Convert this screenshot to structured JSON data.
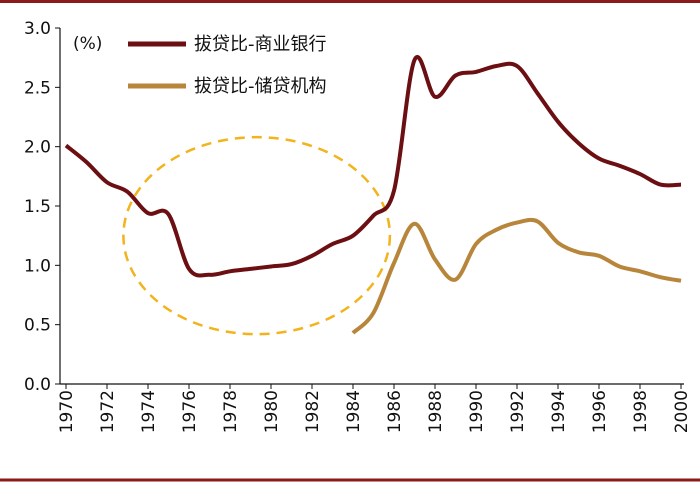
{
  "chart_data": {
    "type": "line",
    "unit_label": "(%)",
    "ylim": [
      0,
      3.0
    ],
    "y_ticks": [
      "0.0",
      "0.5",
      "1.0",
      "1.5",
      "2.0",
      "2.5",
      "3.0"
    ],
    "xlim": [
      1970,
      2000
    ],
    "x_ticks": [
      "1970",
      "1972",
      "1974",
      "1976",
      "1978",
      "1980",
      "1982",
      "1984",
      "1986",
      "1988",
      "1990",
      "1992",
      "1994",
      "1996",
      "1998",
      "2000"
    ],
    "grid": false,
    "legend_position": "top",
    "series": [
      {
        "name": "拔贷比-商业银行",
        "color": "#6b0f12",
        "x": [
          1970,
          1971,
          1972,
          1973,
          1974,
          1975,
          1976,
          1977,
          1978,
          1979,
          1980,
          1981,
          1982,
          1983,
          1984,
          1985,
          1986,
          1987,
          1988,
          1989,
          1990,
          1991,
          1992,
          1993,
          1994,
          1995,
          1996,
          1997,
          1998,
          1999,
          2000
        ],
        "values": [
          2.01,
          1.87,
          1.7,
          1.62,
          1.44,
          1.43,
          0.97,
          0.92,
          0.95,
          0.97,
          0.99,
          1.01,
          1.08,
          1.18,
          1.25,
          1.42,
          1.63,
          2.73,
          2.42,
          2.6,
          2.63,
          2.68,
          2.68,
          2.45,
          2.21,
          2.03,
          1.9,
          1.84,
          1.77,
          1.68,
          1.68
        ]
      },
      {
        "name": "拔贷比-储贷机构",
        "color": "#b8863b",
        "x": [
          1984,
          1985,
          1986,
          1987,
          1988,
          1989,
          1990,
          1991,
          1992,
          1993,
          1994,
          1995,
          1996,
          1997,
          1998,
          1999,
          2000
        ],
        "values": [
          0.43,
          0.6,
          1.02,
          1.35,
          1.05,
          0.88,
          1.18,
          1.3,
          1.36,
          1.37,
          1.19,
          1.11,
          1.08,
          0.99,
          0.95,
          0.9,
          0.87
        ]
      }
    ],
    "annotation": {
      "shape": "dashed-ellipse",
      "color": "#f2b31c",
      "x_center": 1979.3,
      "y_center": 1.25,
      "x_radius": 6.5,
      "y_radius": 0.83
    }
  },
  "colors": {
    "frame": "#8b1a1a",
    "axis": "#111111"
  }
}
